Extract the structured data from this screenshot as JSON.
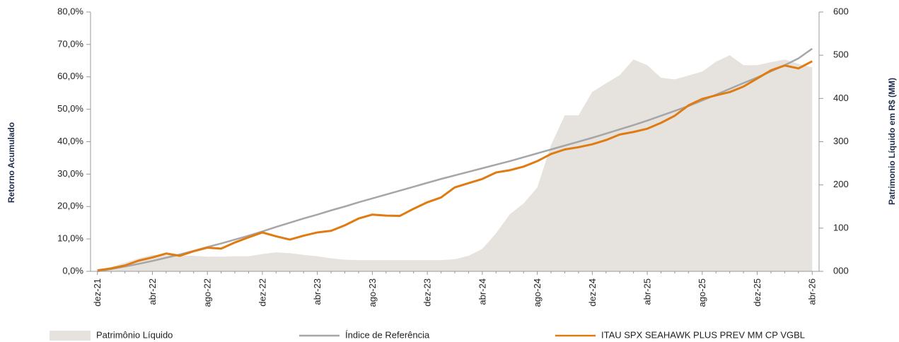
{
  "chart_data": {
    "type": "line",
    "categories": [
      "dez-21",
      null,
      null,
      null,
      "abr-22",
      null,
      null,
      null,
      "ago-22",
      null,
      null,
      null,
      "dez-22",
      null,
      null,
      null,
      "abr-23",
      null,
      null,
      null,
      "ago-23",
      null,
      null,
      null,
      "dez-23",
      null,
      null,
      null,
      "abr-24",
      null,
      null,
      null,
      "ago-24",
      null,
      null,
      null,
      "dez-24",
      null,
      null,
      null,
      "abr-25",
      null,
      null,
      null,
      "ago-25",
      null,
      null,
      null,
      "dez-25",
      null,
      null,
      null,
      "abr-26"
    ],
    "y_label": "Retorno Acumulado",
    "y2_label": "Patrimonio Líquido em R$ (MM)",
    "ylim": [
      0,
      80
    ],
    "yticks": [
      {
        "value": 0,
        "label": "0,0%"
      },
      {
        "value": 10,
        "label": "10,0%"
      },
      {
        "value": 20,
        "label": "20,0%"
      },
      {
        "value": 30,
        "label": "30,0%"
      },
      {
        "value": 40,
        "label": "40,0%"
      },
      {
        "value": 50,
        "label": "50,0%"
      },
      {
        "value": 60,
        "label": "60,0%"
      },
      {
        "value": 70,
        "label": "70,0%"
      },
      {
        "value": 80,
        "label": "80,0%"
      }
    ],
    "y2lim": [
      0,
      600
    ],
    "y2ticks": [
      {
        "value": 0,
        "label": "000"
      },
      100,
      200,
      300,
      400,
      500,
      600
    ],
    "series": [
      {
        "name": "Patrimônio Líquido",
        "type": "area",
        "axis": "y2",
        "color": "#e6e2dd",
        "values": [
          0,
          10,
          20,
          30,
          38,
          37,
          36,
          36,
          34,
          34,
          35,
          35,
          40,
          44,
          42,
          38,
          35,
          30,
          27,
          26,
          26,
          26,
          26,
          26,
          26,
          26,
          28,
          36,
          52,
          88,
          132,
          157,
          194,
          292,
          361,
          361,
          415,
          435,
          454,
          490,
          477,
          448,
          444,
          453,
          462,
          485,
          500,
          477,
          477,
          484,
          490,
          480,
          472
        ]
      },
      {
        "name": "Índice de Referência",
        "type": "line",
        "color": "#a6a6a6",
        "values": [
          0,
          0.7,
          1.5,
          2.3,
          3.2,
          4.2,
          5.2,
          6.3,
          7.5,
          8.6,
          9.8,
          11,
          12.3,
          13.7,
          15,
          16.3,
          17.5,
          18.8,
          20,
          21.3,
          22.5,
          23.7,
          24.9,
          26.1,
          27.3,
          28.5,
          29.6,
          30.7,
          31.8,
          32.9,
          34,
          35.2,
          36.4,
          37.6,
          38.8,
          40,
          41.2,
          42.5,
          43.8,
          45.1,
          46.5,
          48,
          49.5,
          51,
          52.7,
          54.5,
          56.3,
          58.1,
          59.8,
          61.7,
          63.6,
          65.7,
          68.7
        ]
      },
      {
        "name": "ITAU SPX SEAHAWK PLUS PREV MM CP VGBL",
        "type": "line",
        "color": "#e07b12",
        "values": [
          0.3,
          0.9,
          1.8,
          3.3,
          4.3,
          5.5,
          4.8,
          6.2,
          7.3,
          7.0,
          8.9,
          10.5,
          12,
          10.8,
          9.8,
          11,
          12,
          12.5,
          14.2,
          16.3,
          17.5,
          17.2,
          17.1,
          19.3,
          21.3,
          22.8,
          25.9,
          27.2,
          28.5,
          30.5,
          31.2,
          32.3,
          34,
          36.2,
          37.6,
          38.3,
          39.2,
          40.5,
          42.2,
          43,
          44,
          45.8,
          48,
          51.2,
          53.2,
          54.3,
          55.3,
          57,
          59.5,
          62,
          63.5,
          62.6,
          64.8
        ]
      }
    ]
  }
}
